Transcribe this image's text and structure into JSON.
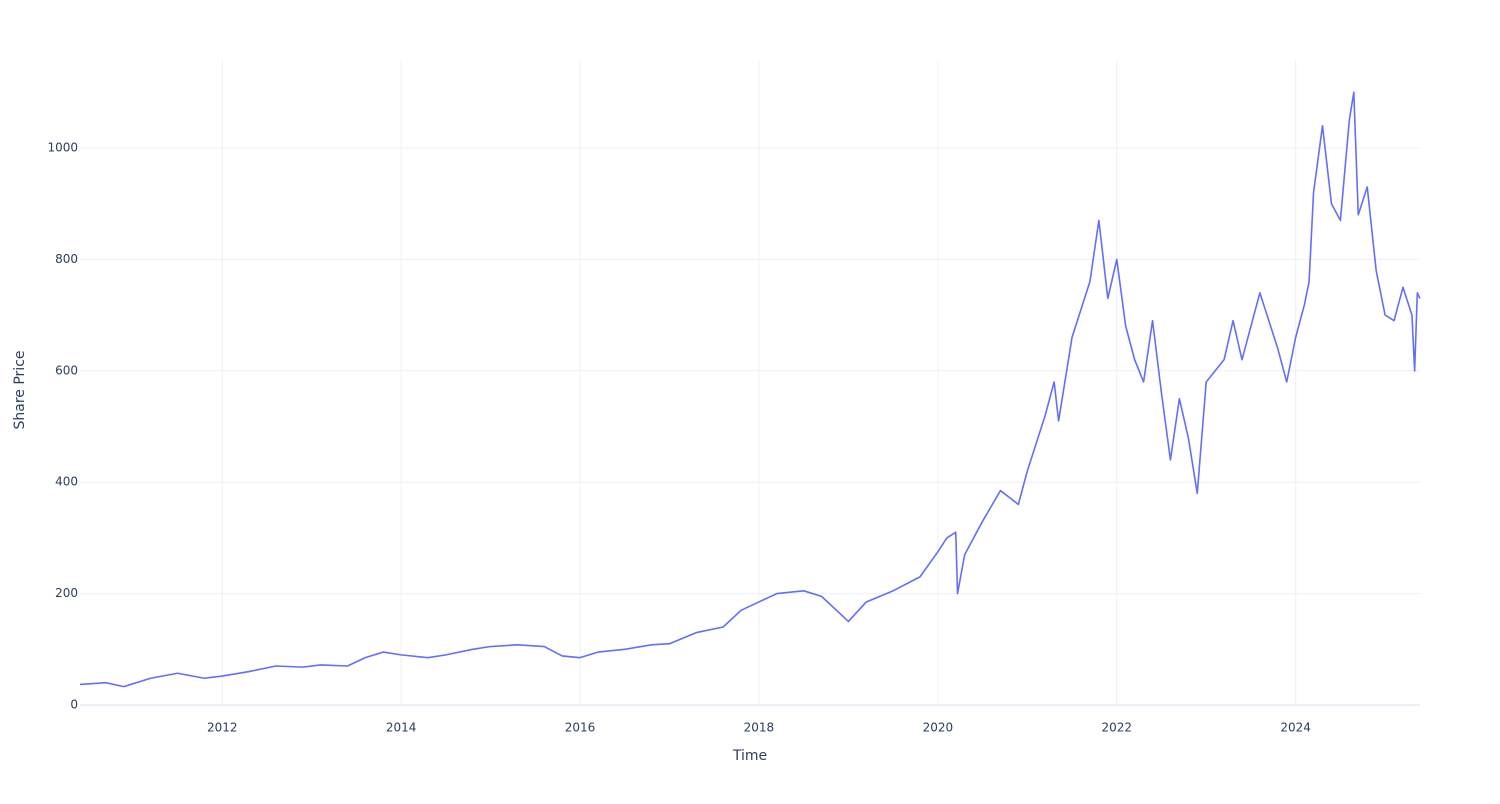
{
  "chart_data": {
    "type": "line",
    "x_label": "Time",
    "y_label": "Share Price",
    "x": [
      2010.41,
      2010.7,
      2010.9,
      2011.2,
      2011.5,
      2011.8,
      2012.0,
      2012.3,
      2012.6,
      2012.9,
      2013.1,
      2013.4,
      2013.6,
      2013.8,
      2014.0,
      2014.3,
      2014.5,
      2014.8,
      2015.0,
      2015.3,
      2015.6,
      2015.8,
      2016.0,
      2016.2,
      2016.5,
      2016.8,
      2017.0,
      2017.3,
      2017.6,
      2017.8,
      2018.0,
      2018.2,
      2018.5,
      2018.7,
      2018.9,
      2019.0,
      2019.2,
      2019.5,
      2019.8,
      2020.0,
      2020.1,
      2020.2,
      2020.22,
      2020.3,
      2020.5,
      2020.7,
      2020.9,
      2021.0,
      2021.2,
      2021.3,
      2021.35,
      2021.5,
      2021.7,
      2021.8,
      2021.9,
      2022.0,
      2022.1,
      2022.2,
      2022.3,
      2022.4,
      2022.5,
      2022.6,
      2022.7,
      2022.8,
      2022.9,
      2023.0,
      2023.2,
      2023.3,
      2023.4,
      2023.6,
      2023.8,
      2023.9,
      2024.0,
      2024.1,
      2024.15,
      2024.2,
      2024.3,
      2024.4,
      2024.5,
      2024.6,
      2024.65,
      2024.7,
      2024.8,
      2024.9,
      2025.0,
      2025.1,
      2025.2,
      2025.3,
      2025.33,
      2025.36,
      2025.39
    ],
    "series": [
      {
        "name": "Share Price",
        "color": "#636efa",
        "values": [
          37,
          40,
          33,
          48,
          57,
          48,
          52,
          60,
          70,
          68,
          72,
          70,
          85,
          95,
          90,
          85,
          90,
          100,
          105,
          108,
          105,
          88,
          85,
          95,
          100,
          108,
          110,
          130,
          140,
          170,
          185,
          200,
          205,
          195,
          165,
          150,
          185,
          205,
          230,
          275,
          300,
          310,
          200,
          270,
          330,
          385,
          360,
          420,
          520,
          580,
          510,
          660,
          760,
          870,
          730,
          800,
          680,
          620,
          580,
          690,
          560,
          440,
          550,
          480,
          380,
          580,
          620,
          690,
          620,
          740,
          640,
          580,
          660,
          720,
          760,
          920,
          1040,
          900,
          870,
          1050,
          1100,
          880,
          930,
          780,
          700,
          690,
          750,
          700,
          600,
          740,
          730
        ]
      }
    ],
    "xlim": [
      2010.41,
      2025.39
    ],
    "ylim": [
      0,
      1158
    ],
    "xticks": [
      2012,
      2014,
      2016,
      2018,
      2020,
      2022,
      2024
    ],
    "yticks": [
      0,
      200,
      400,
      600,
      800,
      1000
    ],
    "grid": true
  }
}
